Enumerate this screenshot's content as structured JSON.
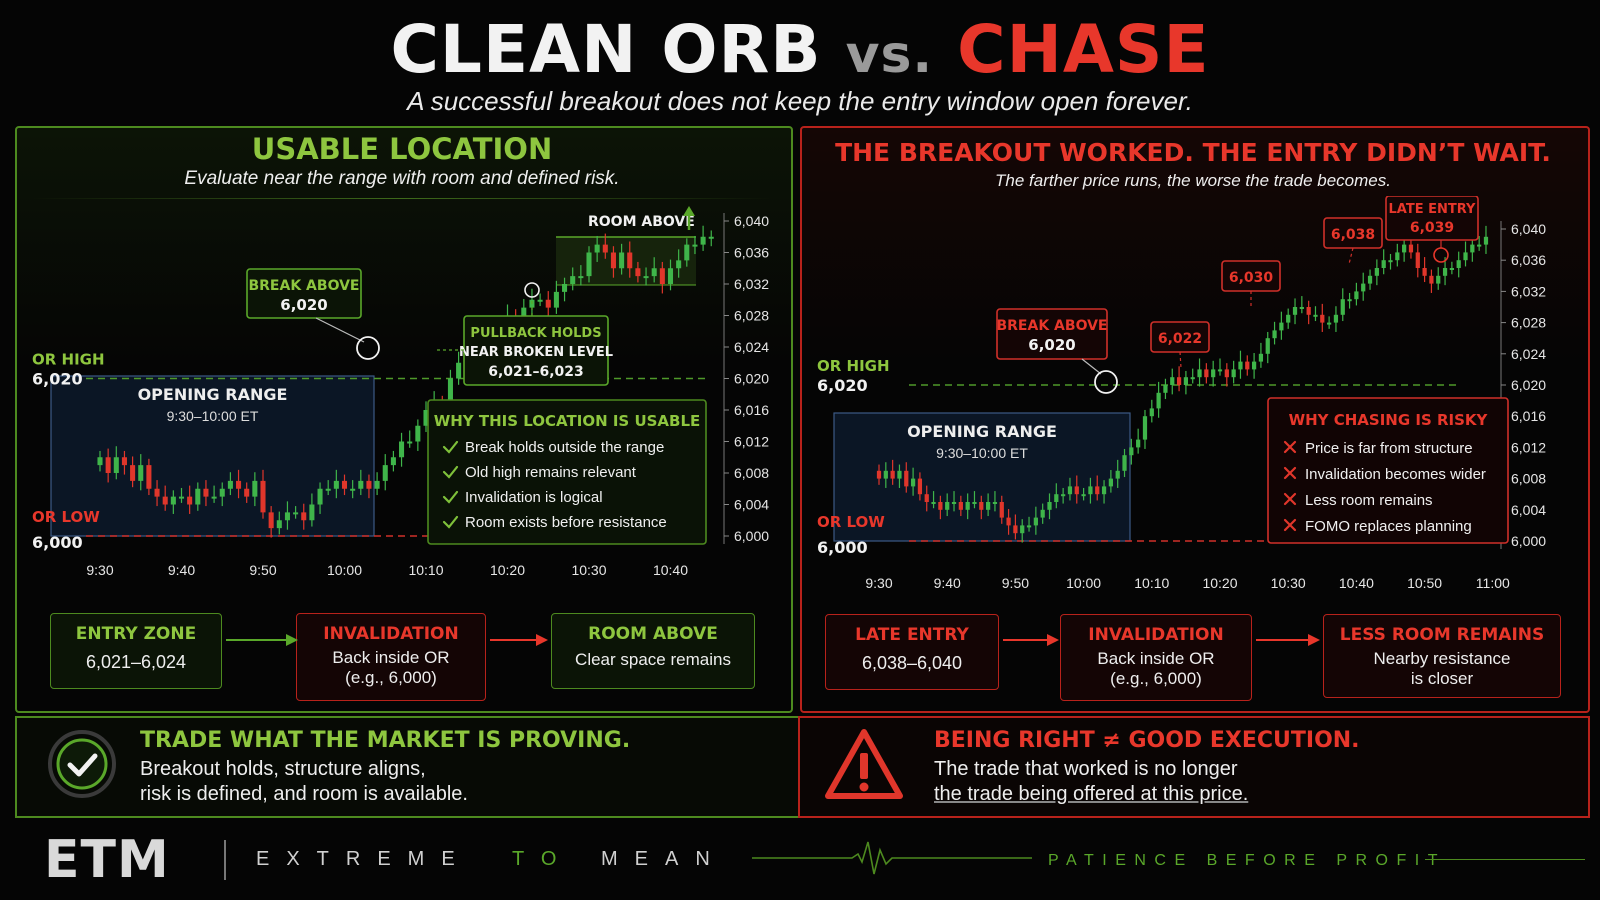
{
  "header": {
    "title_left": "CLEAN ORB",
    "title_vs": "vs.",
    "title_right": "CHASE",
    "subtitle": "A successful breakout does not keep the entry window open forever."
  },
  "left": {
    "title": "USABLE LOCATION",
    "subtitle": "Evaluate near the range with room and defined risk.",
    "or_high_label": "OR HIGH",
    "or_high_value": "6,020",
    "or_low_label": "OR LOW",
    "or_low_value": "6,000",
    "range_title": "OPENING RANGE",
    "range_time": "9:30–10:00 ET",
    "break_title": "BREAK ABOVE",
    "break_value": "6,020",
    "pullback_line1": "PULLBACK HOLDS",
    "pullback_line2": "NEAR BROKEN LEVEL",
    "pullback_value": "6,021–6,023",
    "room_above": "ROOM ABOVE",
    "why_title": "WHY THIS LOCATION IS USABLE",
    "why_items": [
      "Break holds outside the range",
      "Old high remains relevant",
      "Invalidation is logical",
      "Room exists before resistance"
    ],
    "flow": [
      {
        "title": "ENTRY ZONE",
        "text": "6,021–6,024"
      },
      {
        "title": "INVALIDATION",
        "text": "Back inside OR",
        "text2": "(e.g., 6,000)"
      },
      {
        "title": "ROOM ABOVE",
        "text": "Clear space remains"
      }
    ]
  },
  "right": {
    "title": "THE BREAKOUT WORKED. THE ENTRY DIDN’T WAIT.",
    "subtitle": "The farther price runs, the worse the trade becomes.",
    "or_high_label": "OR HIGH",
    "or_high_value": "6,020",
    "or_low_label": "OR LOW",
    "or_low_value": "6,000",
    "range_title": "OPENING RANGE",
    "range_time": "9:30–10:00 ET",
    "break_title": "BREAK ABOVE",
    "break_value": "6,020",
    "price_tags": [
      "6,022",
      "6,030",
      "6,038"
    ],
    "late_title": "LATE ENTRY",
    "late_value": "6,039",
    "why_title": "WHY CHASING IS RISKY",
    "why_items": [
      "Price is far from structure",
      "Invalidation becomes wider",
      "Less room remains",
      "FOMO replaces planning"
    ],
    "flow": [
      {
        "title": "LATE ENTRY",
        "text": "6,038–6,040"
      },
      {
        "title": "INVALIDATION",
        "text": "Back inside OR",
        "text2": "(e.g., 6,000)"
      },
      {
        "title": "LESS ROOM REMAINS",
        "text": "Nearby resistance",
        "text2": "is closer"
      }
    ]
  },
  "bottom": {
    "left_title": "TRADE WHAT THE MARKET IS PROVING.",
    "left_line1": "Breakout holds, structure aligns,",
    "left_line2": "risk is defined, and room is available.",
    "right_title": "BEING RIGHT ≠ GOOD EXECUTION.",
    "right_line1": "The trade that worked is no longer",
    "right_line2": "the trade being offered at this price."
  },
  "footer": {
    "logo": "ETM",
    "w1": "EXTREME",
    "w2": "TO",
    "w3": "MEAN",
    "tagline": "PATIENCE BEFORE PROFIT"
  },
  "colors": {
    "green": "#5aa82a",
    "red": "#e8372b",
    "up_candle": "#3fb54a",
    "down_candle": "#e0362b"
  },
  "chart_data": [
    {
      "type": "candlestick",
      "title": "USABLE LOCATION",
      "x_ticks": [
        "9:30",
        "9:40",
        "9:50",
        "10:00",
        "10:10",
        "10:20",
        "10:30",
        "10:40"
      ],
      "y_ticks": [
        "6,000",
        "6,004",
        "6,008",
        "6,012",
        "6,016",
        "6,020",
        "6,024",
        "6,028",
        "6,032",
        "6,036",
        "6,040"
      ],
      "ylim": [
        6000,
        6040
      ],
      "or_high": 6020,
      "or_low": 6000,
      "x_start": "9:30",
      "candle_minutes": 1,
      "closes": [
        6010,
        6008,
        6010,
        6009,
        6007,
        6009,
        6006,
        6005,
        6004,
        6005,
        6005,
        6004,
        6006,
        6005,
        6005,
        6006,
        6007,
        6006,
        6005,
        6007,
        6003,
        6001,
        6002,
        6003,
        6003,
        6002,
        6004,
        6006,
        6006,
        6007,
        6006,
        6006,
        6007,
        6006,
        6007,
        6009,
        6010,
        6012,
        6012,
        6014,
        6016,
        6017,
        6016,
        6020,
        6022,
        6023,
        6021,
        6024,
        6025,
        6026,
        6028,
        6027,
        6029,
        6030,
        6030,
        6029,
        6031,
        6032,
        6033,
        6033,
        6036,
        6037,
        6036,
        6034,
        6036,
        6034,
        6033,
        6033,
        6034,
        6032,
        6034,
        6035,
        6037,
        6037,
        6038,
        6038
      ],
      "annotations": [
        "BREAK ABOVE 6,020",
        "PULLBACK HOLDS NEAR BROKEN LEVEL 6,021–6,023",
        "ROOM ABOVE"
      ]
    },
    {
      "type": "candlestick",
      "title": "THE BREAKOUT WORKED. THE ENTRY DIDN’T WAIT.",
      "x_ticks": [
        "9:30",
        "9:40",
        "9:50",
        "10:00",
        "10:10",
        "10:20",
        "10:30",
        "10:40",
        "10:50",
        "11:00"
      ],
      "y_ticks": [
        "6,000",
        "6,004",
        "6,008",
        "6,012",
        "6,016",
        "6,020",
        "6,024",
        "6,028",
        "6,032",
        "6,036",
        "6,040"
      ],
      "ylim": [
        6000,
        6040
      ],
      "or_high": 6020,
      "or_low": 6000,
      "x_start": "9:30",
      "candle_minutes": 1,
      "closes": [
        6008,
        6009,
        6008,
        6009,
        6007,
        6008,
        6006,
        6005,
        6005,
        6004,
        6005,
        6005,
        6004,
        6005,
        6005,
        6004,
        6005,
        6005,
        6003,
        6002,
        6001,
        6002,
        6002,
        6003,
        6004,
        6005,
        6006,
        6006,
        6007,
        6006,
        6006,
        6007,
        6006,
        6007,
        6008,
        6009,
        6011,
        6012,
        6013,
        6016,
        6017,
        6019,
        6020,
        6021,
        6020,
        6021,
        6021,
        6022,
        6021,
        6022,
        6022,
        6021,
        6022,
        6023,
        6022,
        6023,
        6024,
        6026,
        6027,
        6028,
        6029,
        6030,
        6030,
        6029,
        6029,
        6028,
        6028,
        6029,
        6031,
        6031,
        6032,
        6033,
        6034,
        6035,
        6036,
        6036,
        6037,
        6038,
        6037,
        6035,
        6034,
        6033,
        6034,
        6035,
        6035,
        6036,
        6037,
        6038,
        6038,
        6039
      ],
      "annotations": [
        "BREAK ABOVE 6,020",
        "6,022",
        "6,030",
        "6,038",
        "LATE ENTRY 6,039"
      ]
    }
  ]
}
